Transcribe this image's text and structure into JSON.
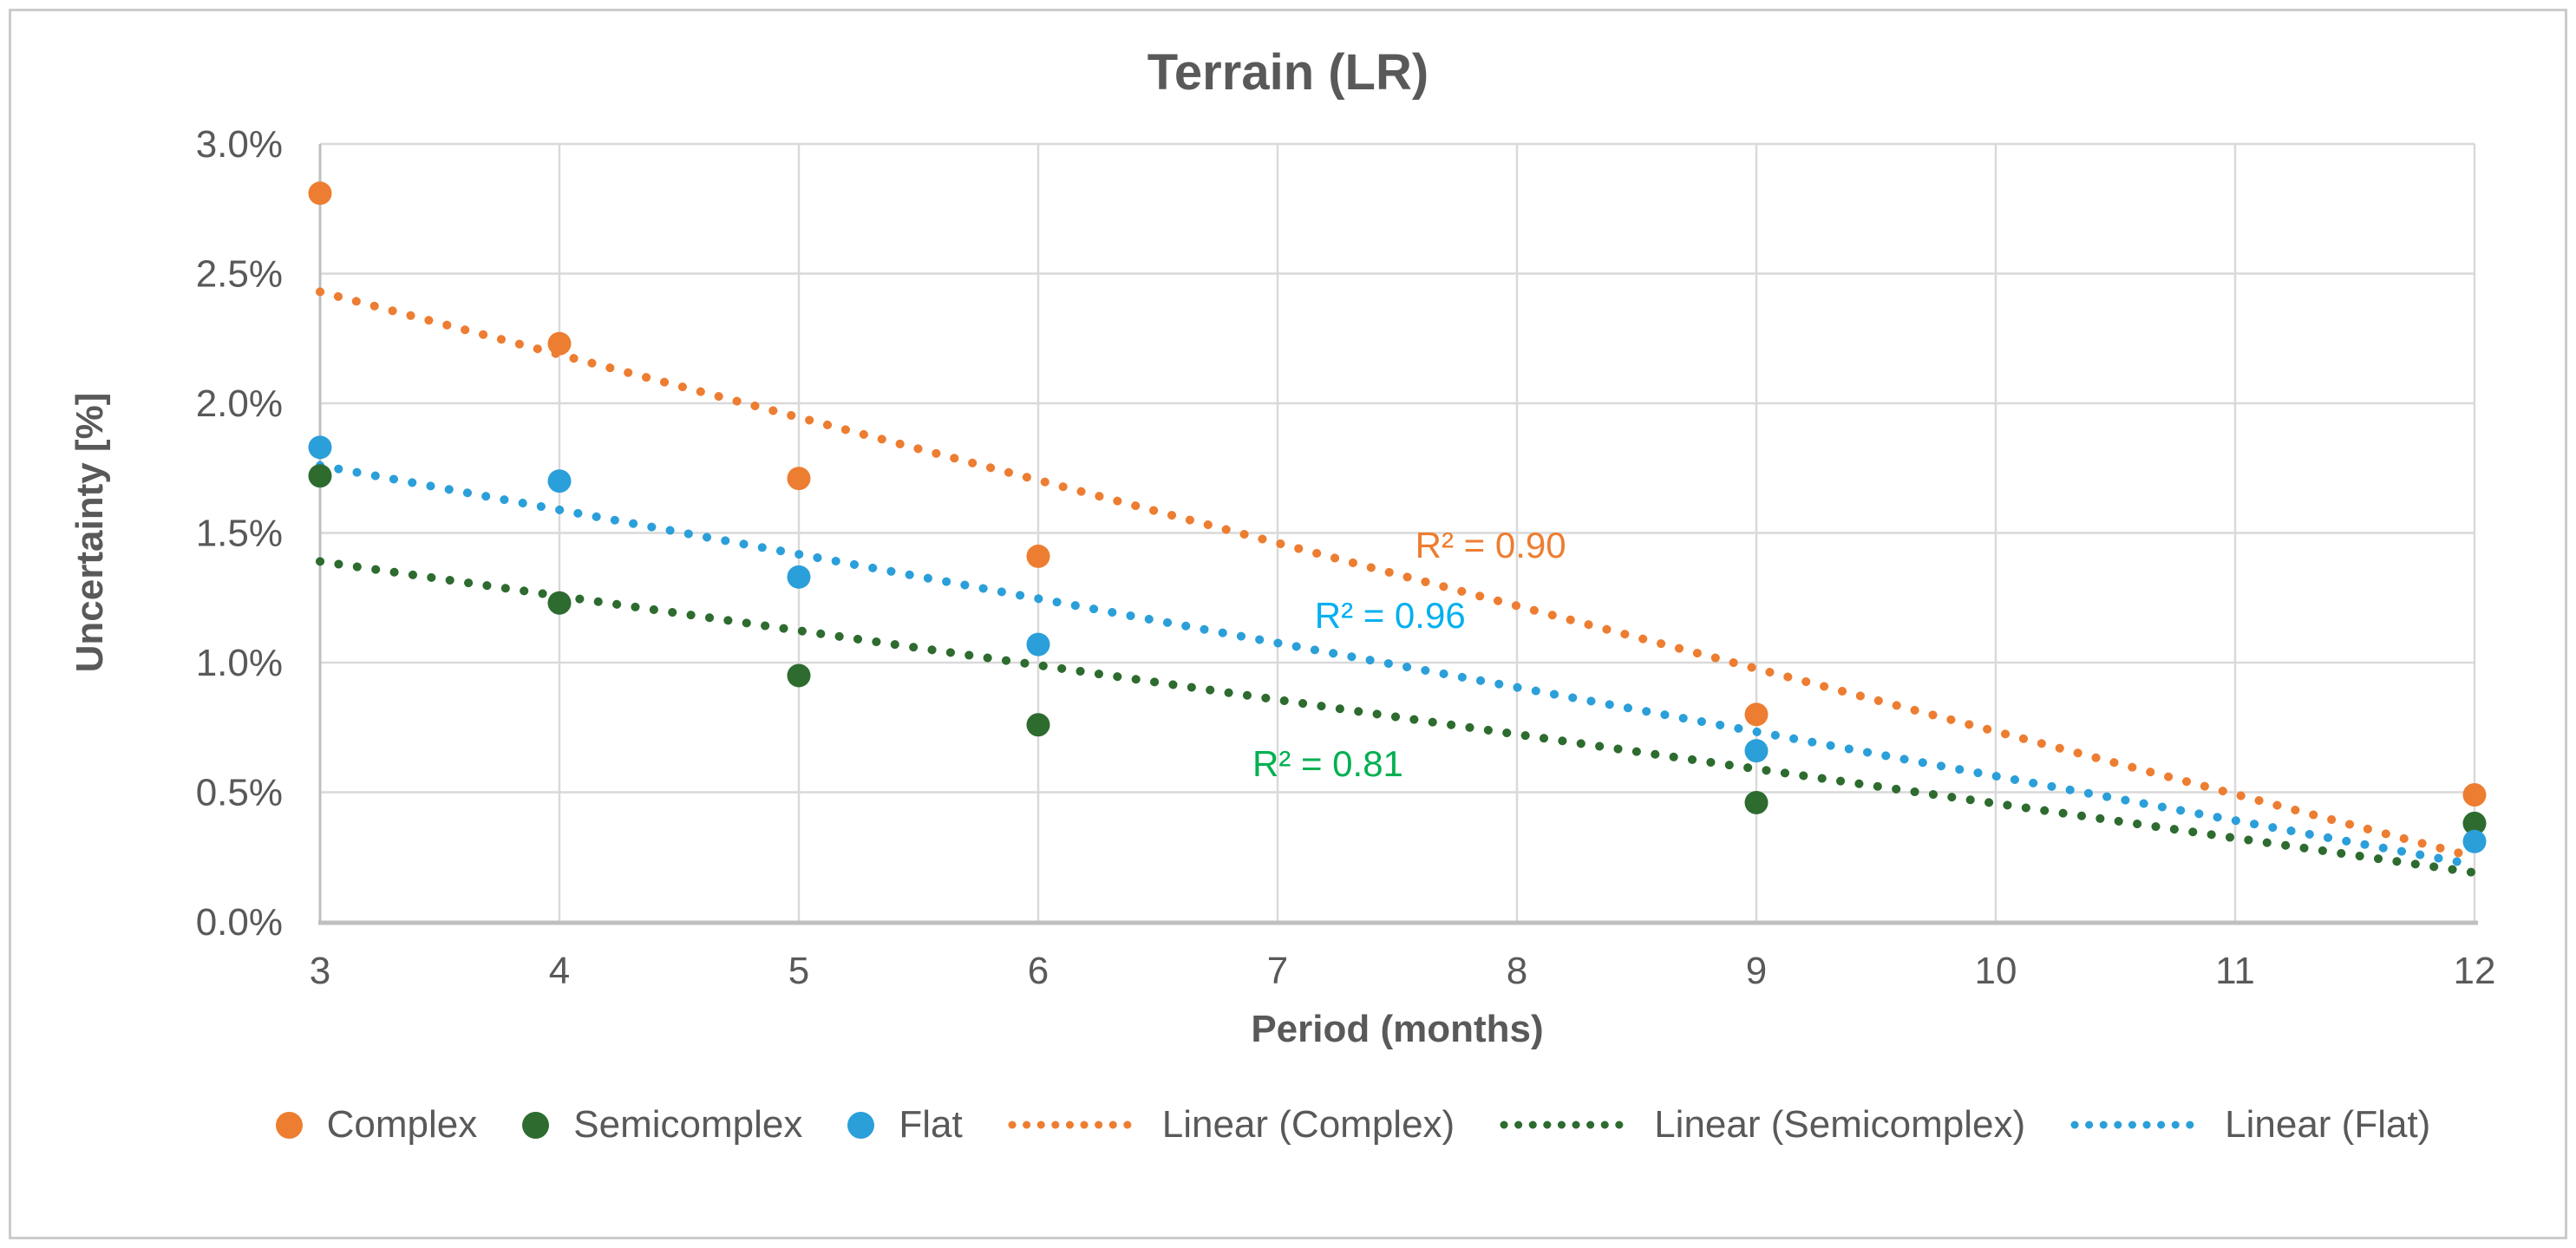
{
  "chart_data": {
    "type": "scatter",
    "title": "Terrain (LR)",
    "xlabel": "Period (months)",
    "ylabel": "Uncertainty [%]",
    "xlim": [
      3,
      12
    ],
    "ylim": [
      0,
      3
    ],
    "grid": true,
    "legend_position": "bottom",
    "x_ticks": [
      "3",
      "4",
      "5",
      "6",
      "7",
      "8",
      "9",
      "10",
      "11",
      "12"
    ],
    "y_ticks": [
      "3.0%",
      "2.5%",
      "2.0%",
      "1.5%",
      "1.0%",
      "0.5%",
      "0.0%"
    ],
    "x": [
      3,
      4,
      5,
      6,
      9,
      12
    ],
    "series": [
      {
        "name": "Complex",
        "color": "#ED7D31",
        "values": [
          2.81,
          2.23,
          1.71,
          1.41,
          0.8,
          0.49
        ]
      },
      {
        "name": "Semicomplex",
        "color": "#2D6B2F",
        "values": [
          1.72,
          1.23,
          0.95,
          0.76,
          0.46,
          0.38
        ]
      },
      {
        "name": "Flat",
        "color": "#2B9FD9",
        "values": [
          1.83,
          1.7,
          1.33,
          1.07,
          0.66,
          0.31
        ]
      }
    ],
    "trendlines": [
      {
        "name": "Linear (Complex)",
        "color": "#ED7D31",
        "x_start": 3,
        "y_start": 2.43,
        "x_end": 12,
        "y_end": 0.25
      },
      {
        "name": "Linear (Semicomplex)",
        "color": "#2D6B2F",
        "x_start": 3,
        "y_start": 1.39,
        "x_end": 12,
        "y_end": 0.19
      },
      {
        "name": "Linear (Flat)",
        "color": "#2B9FD9",
        "x_start": 3,
        "y_start": 1.76,
        "x_end": 12,
        "y_end": 0.22
      }
    ],
    "annotations": [
      {
        "text": "R² = 0.90",
        "color": "#ED7D31",
        "x": 7.89,
        "y": 1.45
      },
      {
        "text": "R² = 0.96",
        "color": "#00B0F0",
        "x": 7.47,
        "y": 1.18
      },
      {
        "text": "R² = 0.81",
        "color": "#00B050",
        "x": 7.21,
        "y": 0.61
      }
    ],
    "legend_items": [
      {
        "label": "Complex",
        "marker": "dot",
        "color": "#ED7D31"
      },
      {
        "label": "Semicomplex",
        "marker": "dot",
        "color": "#2D6B2F"
      },
      {
        "label": "Flat",
        "marker": "dot",
        "color": "#2B9FD9"
      },
      {
        "label": "Linear (Complex)",
        "marker": "dotted-line",
        "color": "#ED7D31"
      },
      {
        "label": "Linear (Semicomplex)",
        "marker": "dotted-line",
        "color": "#2D6B2F"
      },
      {
        "label": "Linear (Flat)",
        "marker": "dotted-line",
        "color": "#2B9FD9"
      }
    ],
    "style": {
      "gridline_color": "#D9D9D9",
      "axis_line_color": "#BFBFBF",
      "text_color": "#595959"
    }
  }
}
